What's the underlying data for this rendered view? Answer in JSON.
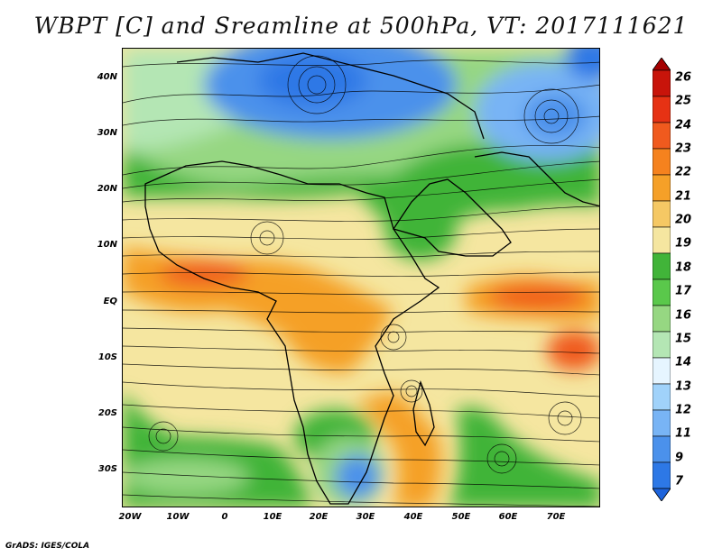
{
  "title": "WBPT [C] and Sreamline at 500hPa, VT: 2017111621",
  "footer": "GrADS: IGES/COLA",
  "axes": {
    "lat_labels": [
      "40N",
      "30N",
      "20N",
      "10N",
      "EQ",
      "10S",
      "20S",
      "30S"
    ],
    "lon_labels": [
      "20W",
      "10W",
      "0",
      "10E",
      "20E",
      "30E",
      "40E",
      "50E",
      "60E",
      "70E"
    ]
  },
  "colorbar": {
    "labels": [
      "26",
      "25",
      "24",
      "23",
      "22",
      "21",
      "20",
      "19",
      "18",
      "17",
      "16",
      "15",
      "14",
      "13",
      "12",
      "11",
      "9",
      "7"
    ],
    "colors": [
      "#a50000",
      "#c8140a",
      "#e63214",
      "#f05a1e",
      "#f5821e",
      "#f5a028",
      "#f5c864",
      "#f5e6a0",
      "#41b439",
      "#5ac84b",
      "#96d782",
      "#b4e6b4",
      "#e6f5ff",
      "#a0d2fa",
      "#78b4f5",
      "#4b91eb",
      "#2d78e6",
      "#1e64dc"
    ]
  },
  "colors": {
    "cold": "#4b91eb",
    "cool": "#96d782",
    "green": "#41b439",
    "warm": "#f5e6a0",
    "hot": "#f5a028",
    "very_hot": "#f05a1e"
  }
}
